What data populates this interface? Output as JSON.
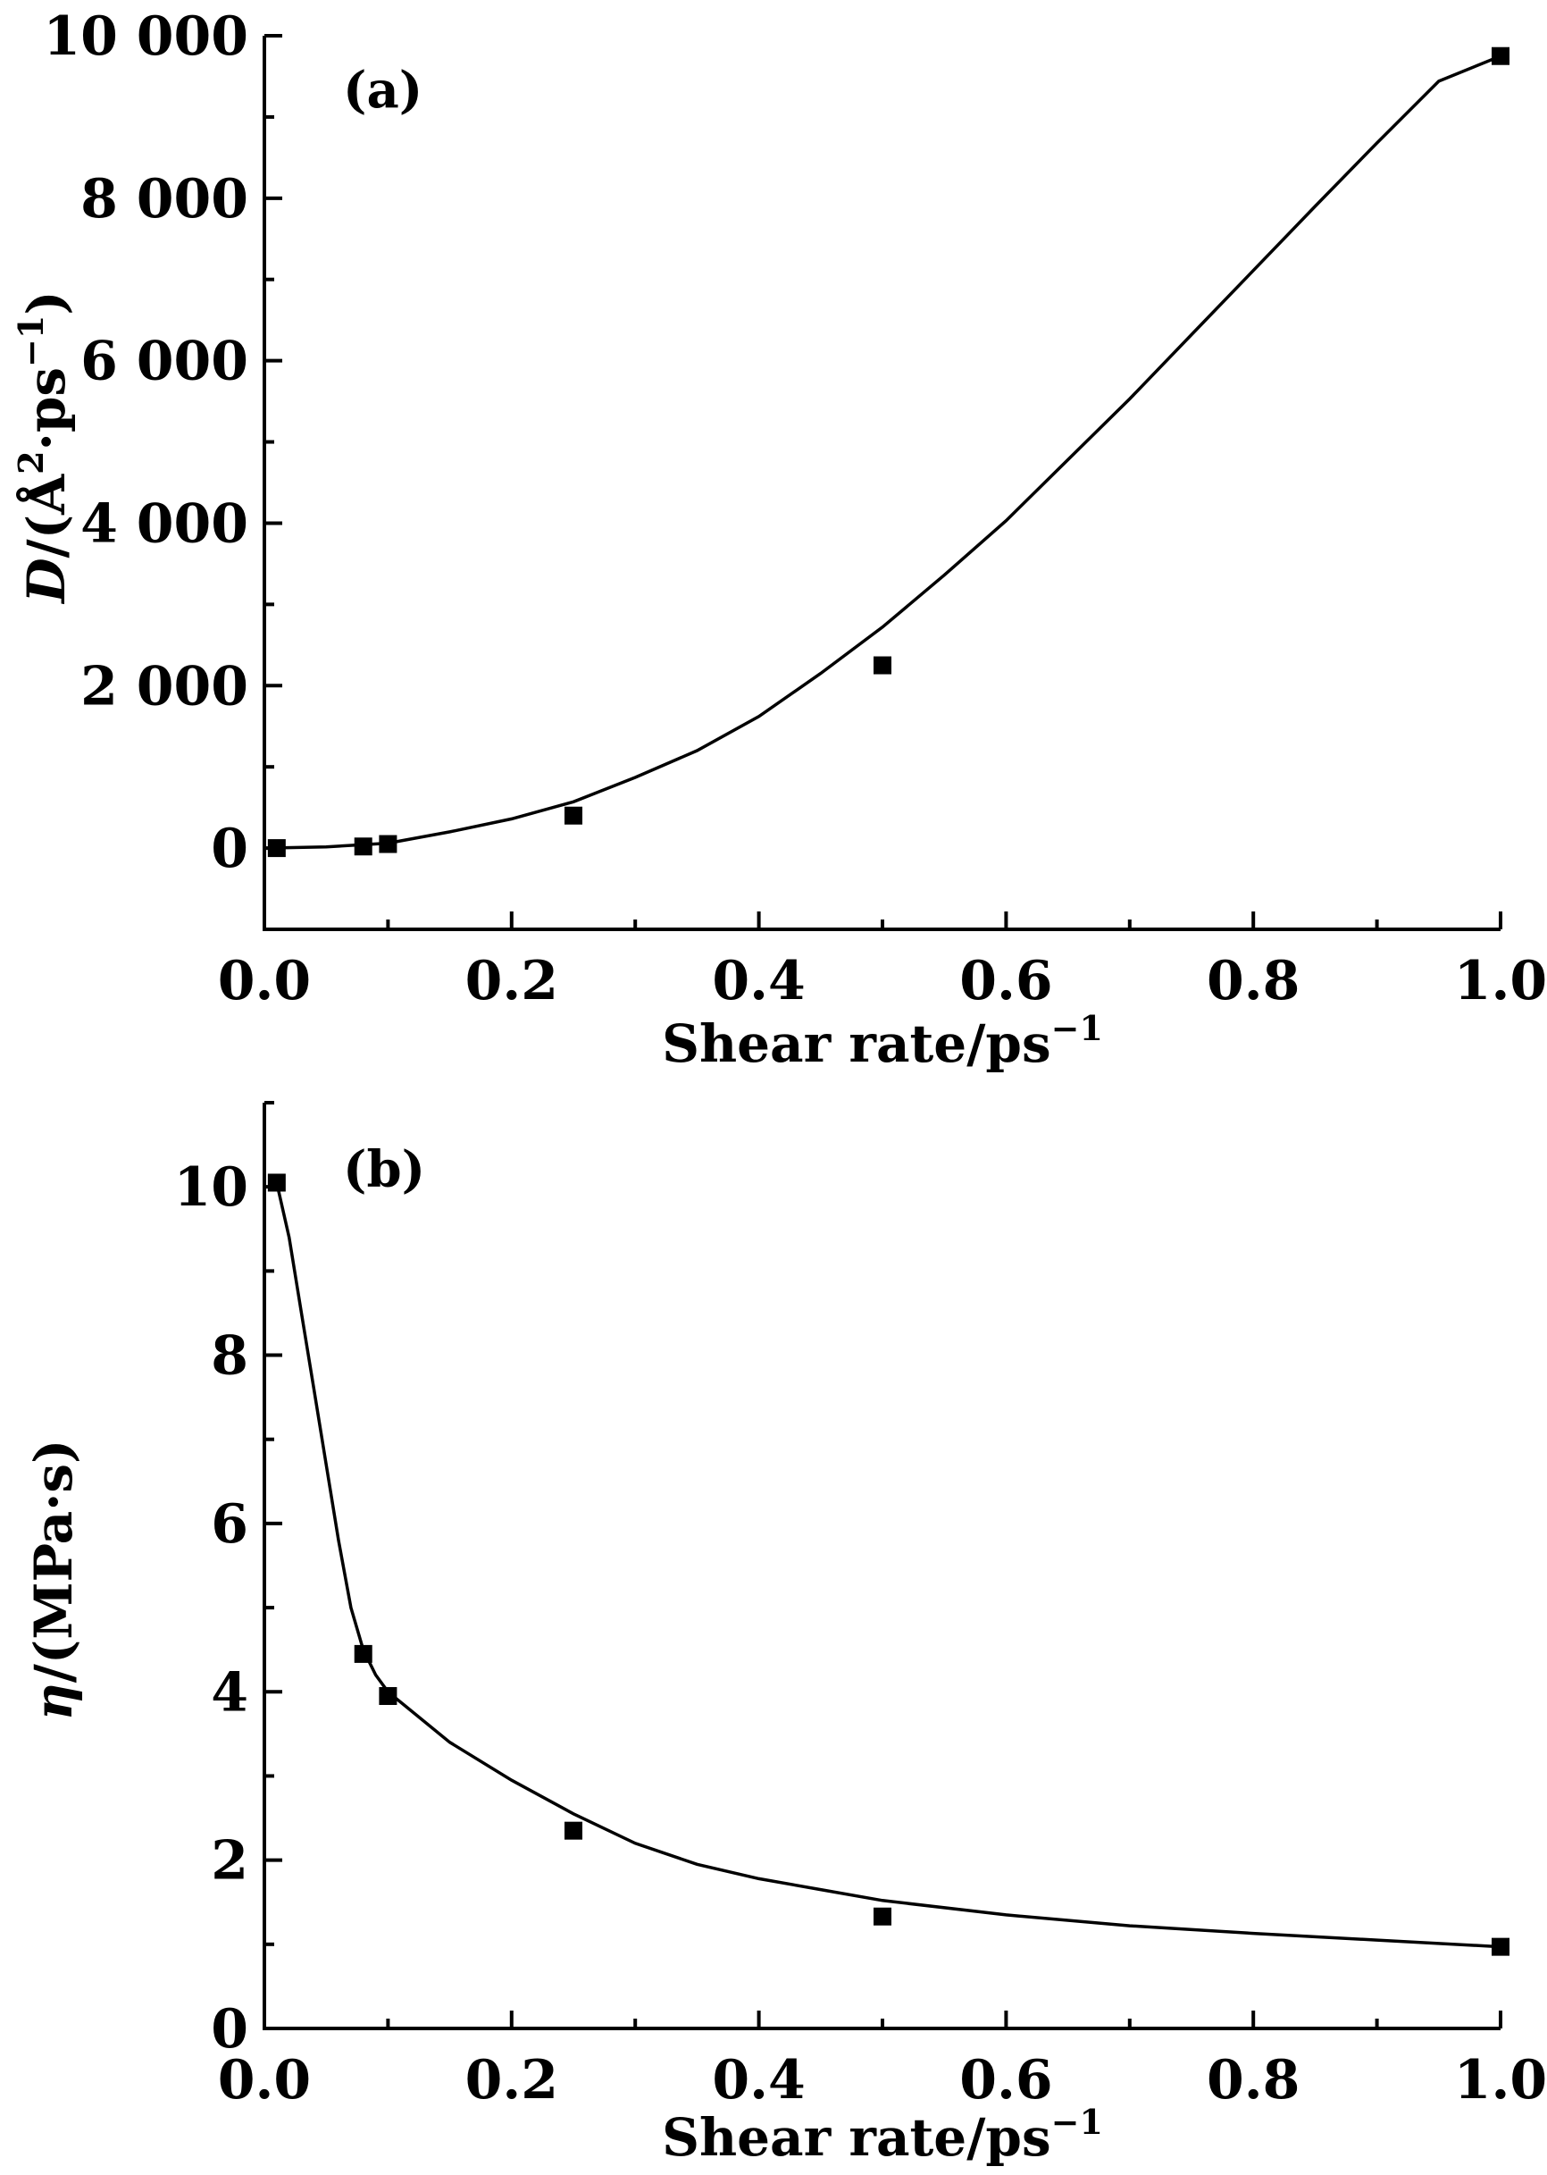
{
  "chart_data": [
    {
      "type": "scatter",
      "panel_label": "(a)",
      "xlabel": "Shear rate/ps",
      "xlabel_sup": "−1",
      "ylabel_parts": [
        "D",
        "/(Å",
        "2",
        "·ps",
        "−1",
        ")"
      ],
      "xlim": [
        0.0,
        1.0
      ],
      "ylim": [
        -1000,
        10000
      ],
      "x_ticks": [
        0.0,
        0.2,
        0.4,
        0.6,
        0.8,
        1.0
      ],
      "x_tick_labels": [
        "0.0",
        "0.2",
        "0.4",
        "0.6",
        "0.8",
        "1.0"
      ],
      "x_minor_ticks": [
        0.1,
        0.3,
        0.5,
        0.7,
        0.9
      ],
      "y_ticks": [
        0,
        2000,
        4000,
        6000,
        8000,
        10000
      ],
      "y_tick_labels": [
        "0",
        "2 000",
        "4 000",
        "6 000",
        "8 000",
        "10 000"
      ],
      "y_minor_ticks": [
        -1000,
        1000,
        3000,
        5000,
        7000,
        9000
      ],
      "grid": false,
      "series": [
        {
          "kind": "points",
          "marker": "square",
          "x": [
            0.01,
            0.08,
            0.1,
            0.25,
            0.5,
            1.0
          ],
          "y": [
            0,
            20,
            50,
            400,
            2250,
            9750
          ]
        },
        {
          "kind": "fit-line",
          "x": [
            0.0,
            0.05,
            0.1,
            0.15,
            0.2,
            0.25,
            0.3,
            0.35,
            0.4,
            0.45,
            0.5,
            0.55,
            0.6,
            0.65,
            0.7,
            0.75,
            0.8,
            0.85,
            0.9,
            0.95,
            1.0
          ],
          "y": [
            0,
            15,
            60,
            200,
            360,
            570,
            870,
            1200,
            1620,
            2150,
            2720,
            3360,
            4030,
            4780,
            5530,
            6320,
            7110,
            7900,
            8680,
            9440,
            9750
          ]
        }
      ]
    },
    {
      "type": "scatter",
      "panel_label": "(b)",
      "xlabel": "Shear rate/ps",
      "xlabel_sup": "−1",
      "ylabel_parts": [
        "η",
        "/(MPa·s)"
      ],
      "xlim": [
        0.0,
        1.0
      ],
      "ylim": [
        0,
        11
      ],
      "x_ticks": [
        0.0,
        0.2,
        0.4,
        0.6,
        0.8,
        1.0
      ],
      "x_tick_labels": [
        "0.0",
        "0.2",
        "0.4",
        "0.6",
        "0.8",
        "1.0"
      ],
      "x_minor_ticks": [
        0.1,
        0.3,
        0.5,
        0.7,
        0.9
      ],
      "y_ticks": [
        0,
        2,
        4,
        6,
        8,
        10
      ],
      "y_tick_labels": [
        "0",
        "2",
        "4",
        "6",
        "8",
        "10"
      ],
      "y_minor_ticks": [
        1,
        3,
        5,
        7,
        9,
        11
      ],
      "grid": false,
      "series": [
        {
          "kind": "points",
          "marker": "square",
          "x": [
            0.01,
            0.08,
            0.1,
            0.25,
            0.5,
            1.0
          ],
          "y": [
            10.05,
            4.45,
            3.95,
            2.35,
            1.33,
            0.97
          ]
        },
        {
          "kind": "fit-line",
          "x": [
            0.01,
            0.02,
            0.03,
            0.04,
            0.05,
            0.06,
            0.07,
            0.08,
            0.09,
            0.1,
            0.15,
            0.2,
            0.25,
            0.3,
            0.35,
            0.4,
            0.45,
            0.5,
            0.6,
            0.7,
            0.8,
            0.9,
            1.0
          ],
          "y": [
            10.05,
            9.4,
            8.5,
            7.6,
            6.7,
            5.8,
            5.0,
            4.5,
            4.2,
            4.0,
            3.4,
            2.95,
            2.55,
            2.2,
            1.95,
            1.78,
            1.65,
            1.52,
            1.35,
            1.22,
            1.13,
            1.05,
            0.97
          ]
        }
      ]
    }
  ]
}
